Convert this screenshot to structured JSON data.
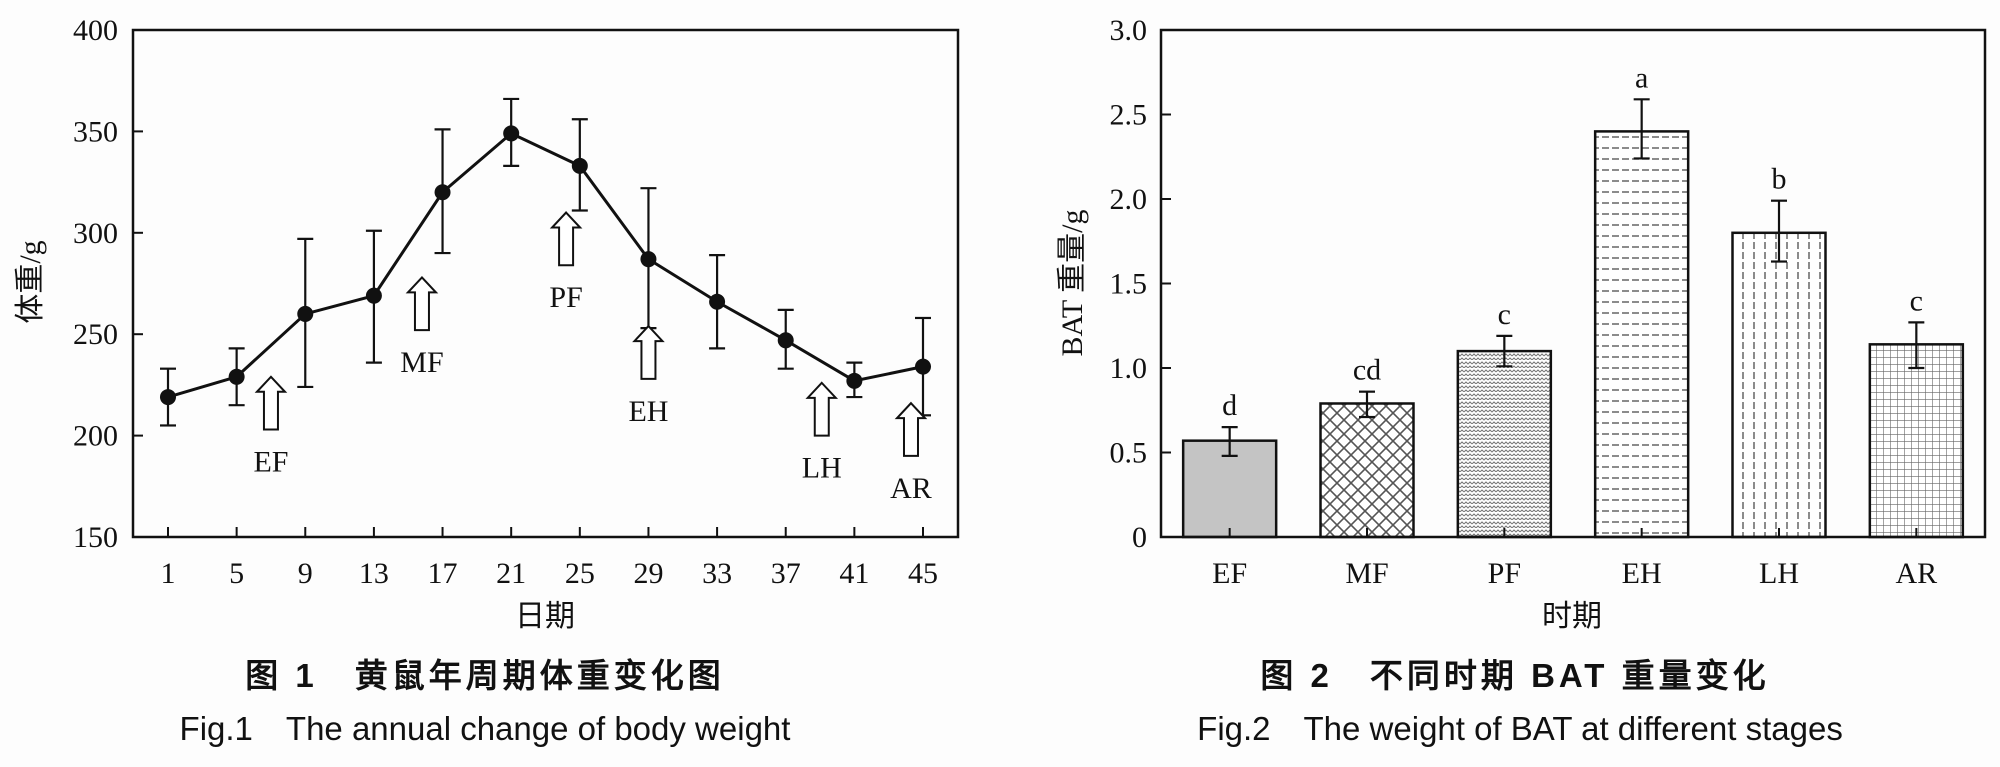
{
  "chart_data": [
    {
      "type": "line",
      "caption_cn": "图 1　黄鼠年周期体重变化图",
      "caption_en": "Fig.1　The annual change of body weight",
      "xlabel": "日期",
      "ylabel": "体重/g",
      "ylim": [
        150,
        400
      ],
      "xlim": [
        -1,
        47
      ],
      "yticks": [
        "150",
        "200",
        "250",
        "300",
        "350",
        "400"
      ],
      "ytick_values": [
        150,
        200,
        250,
        300,
        350,
        400
      ],
      "xticks": [
        "1",
        "5",
        "9",
        "13",
        "17",
        "21",
        "25",
        "29",
        "33",
        "37",
        "41",
        "45"
      ],
      "xtick_values": [
        1,
        5,
        9,
        13,
        17,
        21,
        25,
        29,
        33,
        37,
        41,
        45
      ],
      "grid": false,
      "series": [
        {
          "name": "body weight",
          "x": [
            1,
            5,
            9,
            13,
            17,
            21,
            25,
            29,
            33,
            37,
            41,
            45
          ],
          "y": [
            219,
            229,
            260,
            269,
            320,
            349,
            333,
            287,
            266,
            247,
            227,
            234
          ],
          "error_upper": [
            233,
            243,
            297,
            301,
            351,
            366,
            356,
            322,
            289,
            262,
            236,
            258
          ],
          "error_lower": [
            205,
            215,
            224,
            236,
            290,
            333,
            311,
            253,
            243,
            233,
            219,
            210
          ]
        }
      ],
      "annotations": [
        {
          "label": "EF",
          "x": 7,
          "arrow_top": 229,
          "arrow_bottom": 203
        },
        {
          "label": "MF",
          "x": 15.8,
          "arrow_top": 278,
          "arrow_bottom": 252
        },
        {
          "label": "PF",
          "x": 24.2,
          "arrow_top": 310,
          "arrow_bottom": 284
        },
        {
          "label": "EH",
          "x": 29,
          "arrow_top": 254,
          "arrow_bottom": 228
        },
        {
          "label": "LH",
          "x": 39.1,
          "arrow_top": 226,
          "arrow_bottom": 200
        },
        {
          "label": "AR",
          "x": 44.3,
          "arrow_top": 216,
          "arrow_bottom": 190
        }
      ]
    },
    {
      "type": "bar",
      "caption_cn": "图 2　不同时期 BAT 重量变化",
      "caption_en": "Fig.2　The weight of BAT at different stages",
      "xlabel": "时期",
      "ylabel": "BAT 重量/g",
      "ylim": [
        0,
        3.0
      ],
      "yticks": [
        "0",
        "0.5",
        "1.0",
        "1.5",
        "2.0",
        "2.5",
        "3.0"
      ],
      "ytick_values": [
        0,
        0.5,
        1.0,
        1.5,
        2.0,
        2.5,
        3.0
      ],
      "grid": false,
      "categories": [
        "EF",
        "MF",
        "PF",
        "EH",
        "LH",
        "AR"
      ],
      "values": [
        0.57,
        0.79,
        1.1,
        2.4,
        1.8,
        1.14
      ],
      "error_upper": [
        0.65,
        0.86,
        1.19,
        2.59,
        1.99,
        1.27
      ],
      "error_lower": [
        0.48,
        0.71,
        1.01,
        2.24,
        1.63,
        1.0
      ],
      "significance": [
        "d",
        "cd",
        "c",
        "a",
        "b",
        "c"
      ],
      "patterns": [
        "solid-grey",
        "crosshatch",
        "zigzag",
        "horizontal-dash",
        "vertical-dash",
        "grid"
      ],
      "colors": {
        "fill_grey": "#c4c4c4",
        "ink": "#111111",
        "hatch": "#555555"
      }
    }
  ]
}
